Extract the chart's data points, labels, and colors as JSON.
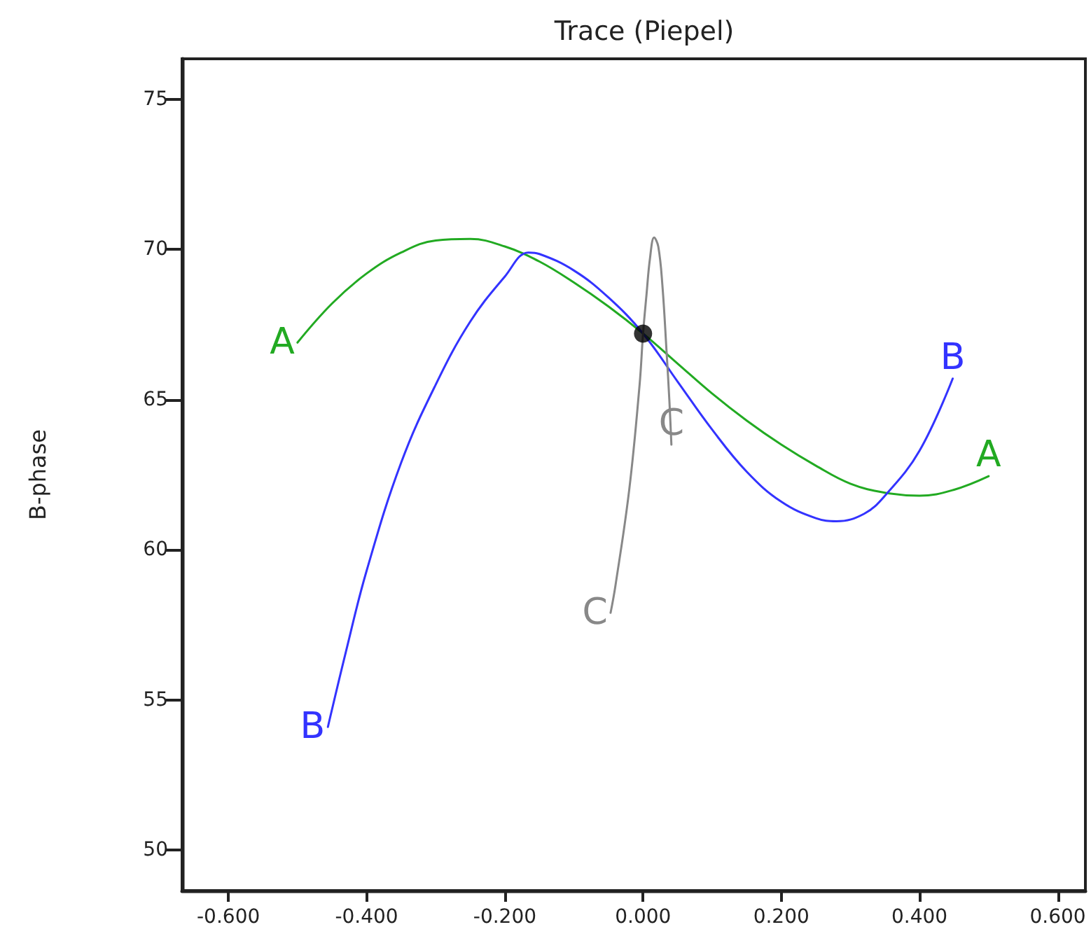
{
  "chart_data": {
    "type": "line",
    "title": "Trace (Piepel)",
    "ylabel": "B-phase",
    "xlim": [
      -0.667,
      0.64
    ],
    "ylim": [
      48.65,
      76.35
    ],
    "xticks": [
      {
        "value": -0.6,
        "label": "-0.600"
      },
      {
        "value": -0.4,
        "label": "-0.400"
      },
      {
        "value": -0.2,
        "label": "-0.200"
      },
      {
        "value": 0,
        "label": "0.000"
      },
      {
        "value": 0.2,
        "label": "0.200"
      },
      {
        "value": 0.4,
        "label": "0.400"
      },
      {
        "value": 0.6,
        "label": "0.600"
      }
    ],
    "yticks": [
      50,
      55,
      60,
      65,
      70,
      75
    ],
    "grid": false,
    "legend": false,
    "marker": "none",
    "line_style": "solid",
    "series": [
      {
        "name": "A",
        "color": "#22aa22",
        "x": [
          -0.5,
          -0.45,
          -0.4,
          -0.35,
          -0.3,
          -0.25,
          -0.2,
          -0.15,
          -0.1,
          -0.05,
          0,
          0.05,
          0.1,
          0.15,
          0.2,
          0.25,
          0.3,
          0.35,
          0.4,
          0.45,
          0.5
        ],
        "values": [
          66.9,
          68.2,
          69.2,
          69.9,
          70.3,
          70.35,
          70.1,
          69.6,
          68.9,
          68.1,
          67.2,
          66.2,
          65.2,
          64.3,
          63.5,
          62.8,
          62.2,
          61.9,
          61.8,
          62.0,
          62.45
        ]
      },
      {
        "name": "B",
        "color": "#3333ff",
        "x": [
          -0.456,
          -0.43,
          -0.4,
          -0.35,
          -0.3,
          -0.25,
          -0.2,
          -0.166,
          -0.15,
          -0.1,
          -0.05,
          0,
          0.05,
          0.1,
          0.15,
          0.2,
          0.25,
          0.28,
          0.32,
          0.35,
          0.4,
          0.448
        ],
        "values": [
          54.1,
          56.6,
          59.3,
          62.9,
          65.5,
          67.6,
          69.1,
          69.9,
          69.85,
          69.3,
          68.4,
          67.2,
          65.6,
          64.0,
          62.6,
          61.6,
          61.05,
          60.95,
          61.2,
          61.8,
          63.3,
          65.7
        ]
      },
      {
        "name": "C",
        "color": "#888888",
        "x": [
          -0.047,
          -0.04,
          -0.02,
          -0.005,
          0,
          0.005,
          0.01,
          0.016,
          0.022,
          0.028,
          0.034,
          0.038,
          0.041
        ],
        "values": [
          57.9,
          58.8,
          62.0,
          65.5,
          67.2,
          68.5,
          69.7,
          70.4,
          70.1,
          68.8,
          66.6,
          65.0,
          63.5
        ]
      },
      {
        "type": "scatter",
        "marker": "circle",
        "color": "#000000",
        "x": [
          0
        ],
        "values": [
          67.2
        ]
      }
    ]
  }
}
